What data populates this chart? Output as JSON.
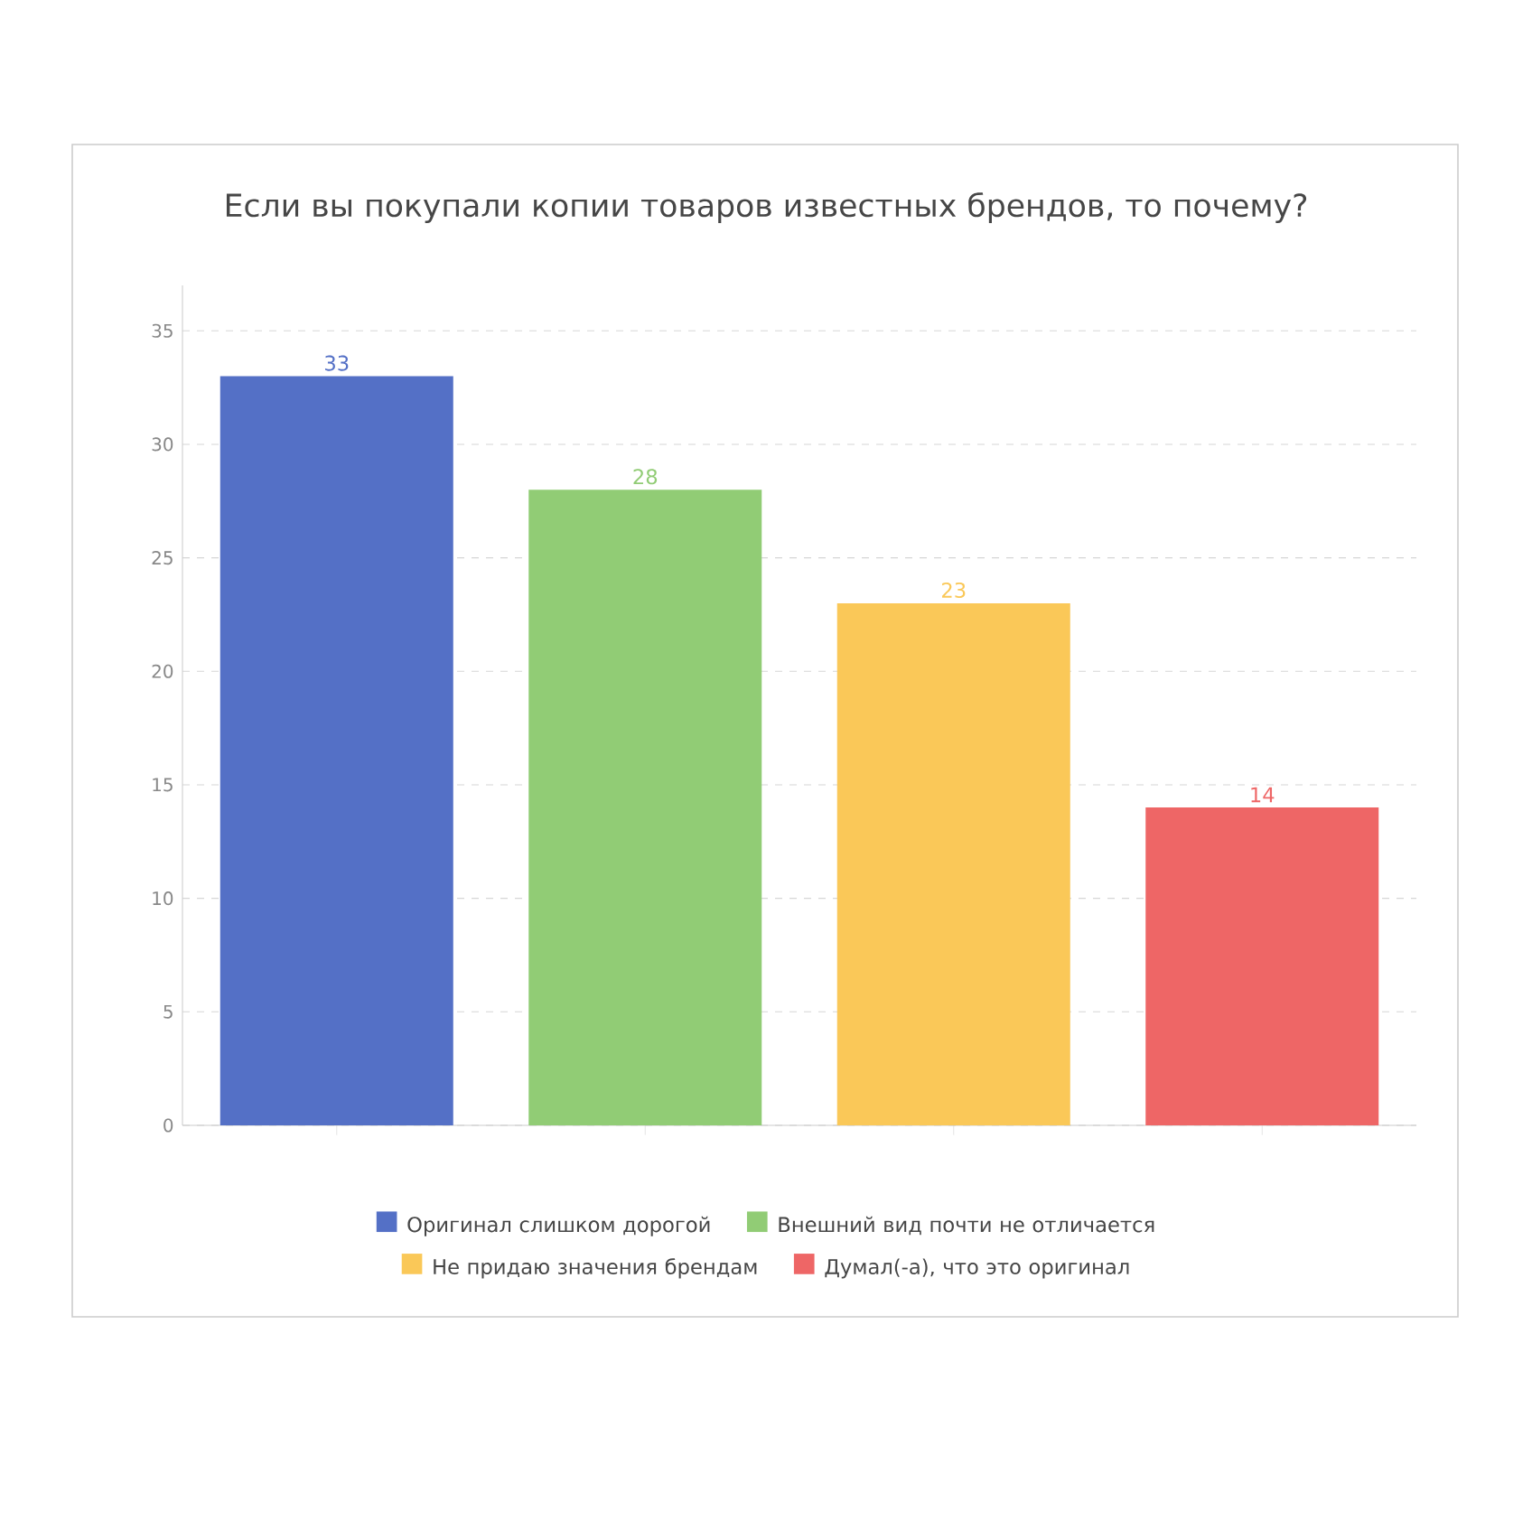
{
  "chart_data": {
    "type": "bar",
    "title": "Если вы покупали копии товаров известных брендов, то почему?",
    "categories": [
      null,
      null,
      null,
      null
    ],
    "series": [
      {
        "name": "Оригинал слишком дорогой",
        "color": "#5470c6",
        "values": [
          33,
          null,
          null,
          null
        ]
      },
      {
        "name": "Внешний вид почти не отличается",
        "color": "#91cc75",
        "values": [
          null,
          28,
          null,
          null
        ]
      },
      {
        "name": "Не придаю значения брендам",
        "color": "#fac858",
        "values": [
          null,
          null,
          23,
          null
        ]
      },
      {
        "name": "Думал(-а), что это оригинал",
        "color": "#ee6666",
        "values": [
          null,
          null,
          null,
          14
        ]
      }
    ],
    "ylim": [
      0,
      37
    ],
    "yticks": [
      0,
      5,
      10,
      15,
      20,
      25,
      30,
      35
    ],
    "grid": "y",
    "legend": "bottom",
    "data_labels": true,
    "tick_labels": "y"
  }
}
